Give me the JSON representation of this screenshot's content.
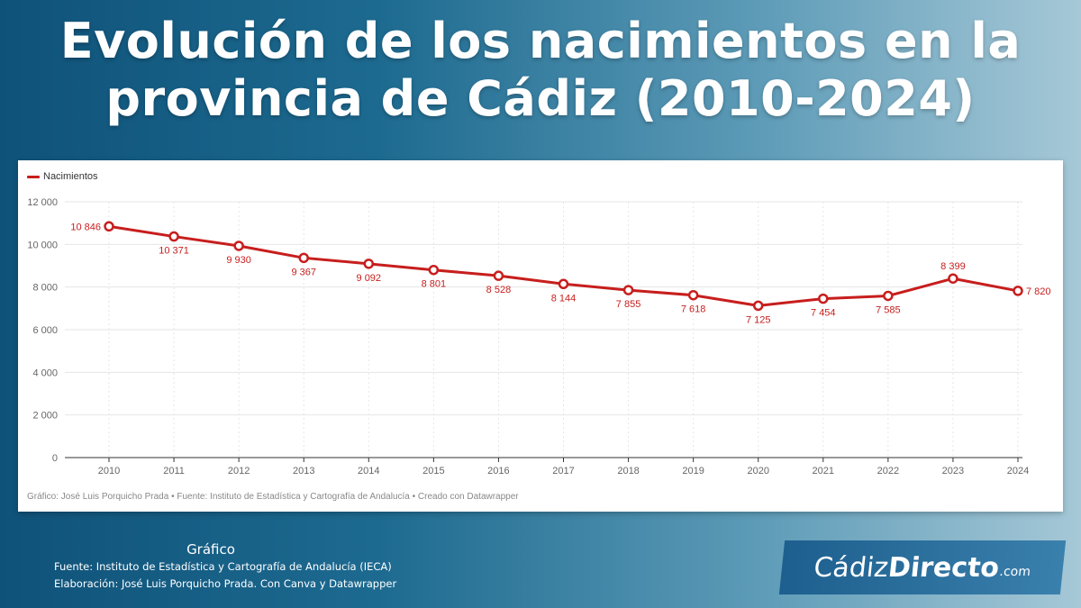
{
  "header": {
    "title_line1": "Evolución de los nacimientos en la",
    "title_line2": "provincia de Cádiz (2010-2024)"
  },
  "colors": {
    "series": "#c71e1d",
    "grid": "#e6e6e6",
    "axis": "#333333"
  },
  "chart_data": {
    "type": "line",
    "title": "Evolución de los nacimientos en la provincia de Cádiz (2010-2024)",
    "x": [
      "2010",
      "2011",
      "2012",
      "2013",
      "2014",
      "2015",
      "2016",
      "2017",
      "2018",
      "2019",
      "2020",
      "2021",
      "2022",
      "2023",
      "2024"
    ],
    "series": [
      {
        "name": "Nacimientos",
        "values": [
          10846,
          10371,
          9930,
          9367,
          9092,
          8801,
          8528,
          8144,
          7855,
          7618,
          7125,
          7454,
          7585,
          8399,
          7820
        ],
        "labels": [
          "10 846",
          "10 371",
          "9 930",
          "9 367",
          "9 092",
          "8 801",
          "8 528",
          "8 144",
          "7 855",
          "7 618",
          "7 125",
          "7 454",
          "7 585",
          "8 399",
          "7 820"
        ]
      }
    ],
    "ylim": [
      0,
      12000
    ],
    "yticks": [
      0,
      2000,
      4000,
      6000,
      8000,
      10000,
      12000
    ],
    "ytick_labels": [
      "0",
      "2 000",
      "4 000",
      "6 000",
      "8 000",
      "10 000",
      "12 000"
    ],
    "grid": true,
    "legend": "top-left"
  },
  "credit": "Gráfico: José Luis Porquicho Prada • Fuente: Instituto de Estadística y Cartografía de Andalucía • Creado con Datawrapper",
  "footer": {
    "title": "Gráfico",
    "source": "Fuente:  Instituto de Estadística y Cartografía de Andalucía (IECA)",
    "made_by": "Elaboración: José Luis Porquicho Prada. Con Canva y Datawrapper"
  },
  "logo": {
    "part1": "Cádiz",
    "part2": "Directo",
    "part3": ".com"
  }
}
